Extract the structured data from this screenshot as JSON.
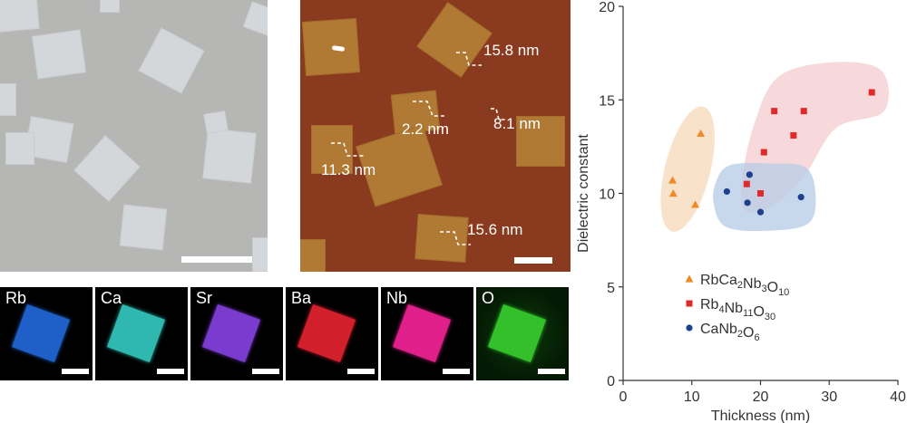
{
  "afm_labels": {
    "step1": "15.8 nm",
    "step2": "2.2 nm",
    "step3": "8.1 nm",
    "step4": "11.3 nm",
    "step5": "15.6 nm"
  },
  "eds": [
    {
      "element": "Rb",
      "color": "#1f5fc8"
    },
    {
      "element": "Ca",
      "color": "#2fb8b0"
    },
    {
      "element": "Sr",
      "color": "#7a3ccf"
    },
    {
      "element": "Ba",
      "color": "#d21f2c"
    },
    {
      "element": "Nb",
      "color": "#e0208a"
    },
    {
      "element": "O",
      "color": "#33c02a"
    }
  ],
  "chart_data": {
    "type": "scatter",
    "xlabel": "Thickness (nm)",
    "ylabel": "Dielectric constant",
    "xlim": [
      0,
      40
    ],
    "ylim": [
      0,
      20
    ],
    "xticks": [
      0,
      10,
      20,
      30,
      40
    ],
    "yticks": [
      0,
      5,
      10,
      15,
      20
    ],
    "grid": false,
    "legend_position": "bottom-right",
    "series": [
      {
        "name_parts": [
          [
            "RbCa",
            ""
          ],
          [
            "2",
            "sub"
          ],
          [
            "Nb",
            ""
          ],
          [
            "3",
            "sub"
          ],
          [
            "O",
            ""
          ],
          [
            "10",
            "sub"
          ]
        ],
        "marker": "triangle",
        "color": "#f08a28",
        "region_color": "#f7d8b8",
        "points": [
          [
            7.2,
            10.7
          ],
          [
            7.3,
            10.0
          ],
          [
            10.5,
            9.4
          ],
          [
            11.3,
            13.2
          ]
        ]
      },
      {
        "name_parts": [
          [
            "Rb",
            ""
          ],
          [
            "4",
            "sub"
          ],
          [
            "Nb",
            ""
          ],
          [
            "11",
            "sub"
          ],
          [
            "O",
            ""
          ],
          [
            "30",
            "sub"
          ]
        ],
        "marker": "square",
        "color": "#e02a2a",
        "region_color": "#f6cccf",
        "points": [
          [
            18.0,
            10.5
          ],
          [
            20.0,
            10.0
          ],
          [
            20.5,
            12.2
          ],
          [
            22.0,
            14.4
          ],
          [
            24.8,
            13.1
          ],
          [
            26.3,
            14.4
          ],
          [
            36.2,
            15.4
          ]
        ]
      },
      {
        "name_parts": [
          [
            "CaNb",
            ""
          ],
          [
            "2",
            "sub"
          ],
          [
            "O",
            ""
          ],
          [
            "6",
            "sub"
          ]
        ],
        "marker": "circle",
        "color": "#1f3f8f",
        "region_color": "#b6cbe6",
        "points": [
          [
            15.1,
            10.1
          ],
          [
            18.1,
            9.5
          ],
          [
            18.4,
            11.0
          ],
          [
            20.0,
            9.0
          ],
          [
            25.9,
            9.8
          ]
        ]
      }
    ]
  }
}
